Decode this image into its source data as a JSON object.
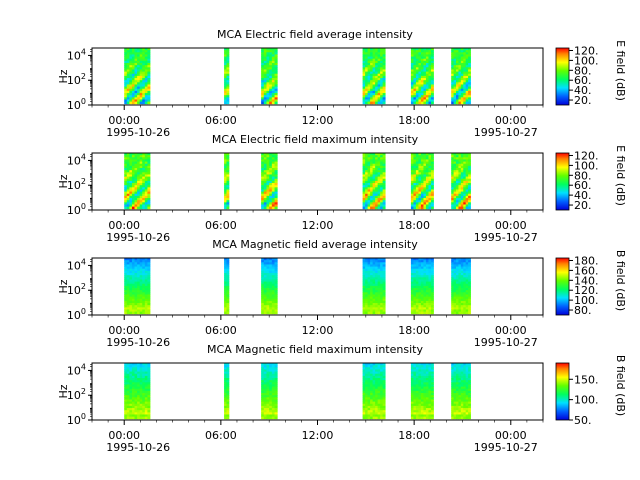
{
  "chart_data": [
    {
      "type": "heatmap",
      "title": "MCA  Electric field average intensity",
      "ylabel": "Hz",
      "colorbar_label": "E field (dB)",
      "colorbar_ticks": [
        "20.",
        "40.",
        "60.",
        "80.",
        "100.",
        "120."
      ],
      "colorbar_range": [
        10,
        125
      ],
      "x_tick_labels": [
        "00:00",
        "06:00",
        "12:00",
        "18:00",
        "00:00"
      ],
      "x_start_date": "1995-10-26",
      "x_end_date": "1995-10-27",
      "y_scale": "log",
      "y_ticks": [
        "10^0",
        "10^2",
        "10^4"
      ],
      "colormap": "rainbow",
      "data_intervals_hours": [
        [
          0.0,
          1.6
        ],
        [
          6.2,
          6.5
        ],
        [
          8.5,
          9.5
        ],
        [
          14.8,
          16.2
        ],
        [
          17.8,
          19.2
        ],
        [
          20.3,
          21.5
        ]
      ]
    },
    {
      "type": "heatmap",
      "title": "MCA  Electric field maximum intensity",
      "ylabel": "Hz",
      "colorbar_label": "E field (dB)",
      "colorbar_ticks": [
        "20.",
        "40.",
        "60.",
        "80.",
        "100.",
        "120."
      ],
      "colorbar_range": [
        10,
        125
      ],
      "x_tick_labels": [
        "00:00",
        "06:00",
        "12:00",
        "18:00",
        "00:00"
      ],
      "x_start_date": "1995-10-26",
      "x_end_date": "1995-10-27",
      "y_scale": "log",
      "y_ticks": [
        "10^0",
        "10^2",
        "10^4"
      ],
      "colormap": "rainbow",
      "data_intervals_hours": [
        [
          0.0,
          1.6
        ],
        [
          6.2,
          6.5
        ],
        [
          8.5,
          9.5
        ],
        [
          14.8,
          16.2
        ],
        [
          17.8,
          19.2
        ],
        [
          20.3,
          21.5
        ]
      ]
    },
    {
      "type": "heatmap",
      "title": "MCA  Magnetic field average intensity",
      "ylabel": "Hz",
      "colorbar_label": "B field (dB)",
      "colorbar_ticks": [
        "80.",
        "100.",
        "120.",
        "140.",
        "160.",
        "180."
      ],
      "colorbar_range": [
        70,
        185
      ],
      "x_tick_labels": [
        "00:00",
        "06:00",
        "12:00",
        "18:00",
        "00:00"
      ],
      "x_start_date": "1995-10-26",
      "x_end_date": "1995-10-27",
      "y_scale": "log",
      "y_ticks": [
        "10^0",
        "10^2",
        "10^4"
      ],
      "colormap": "rainbow",
      "data_intervals_hours": [
        [
          0.0,
          1.6
        ],
        [
          6.2,
          6.5
        ],
        [
          8.5,
          9.5
        ],
        [
          14.8,
          16.2
        ],
        [
          17.8,
          19.2
        ],
        [
          20.3,
          21.5
        ]
      ]
    },
    {
      "type": "heatmap",
      "title": "MCA  Magnetic field maximum intensity",
      "ylabel": "Hz",
      "colorbar_label": "B field (dB)",
      "colorbar_ticks": [
        "50.",
        "100.",
        "150."
      ],
      "colorbar_range": [
        50,
        190
      ],
      "x_tick_labels": [
        "00:00",
        "06:00",
        "12:00",
        "18:00",
        "00:00"
      ],
      "x_start_date": "1995-10-26",
      "x_end_date": "1995-10-27",
      "y_scale": "log",
      "y_ticks": [
        "10^0",
        "10^2",
        "10^4"
      ],
      "colormap": "rainbow",
      "data_intervals_hours": [
        [
          0.0,
          1.6
        ],
        [
          6.2,
          6.5
        ],
        [
          8.5,
          9.5
        ],
        [
          14.8,
          16.2
        ],
        [
          17.8,
          19.2
        ],
        [
          20.3,
          21.5
        ]
      ]
    }
  ]
}
